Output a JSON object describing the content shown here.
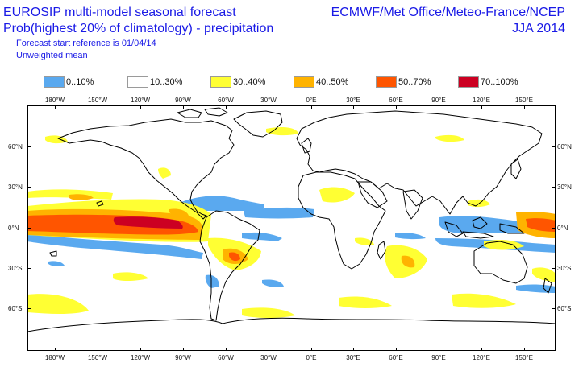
{
  "header": {
    "title_line1": "EUROSIP multi-model seasonal forecast",
    "title_line2": "Prob(highest 20% of climatology) - precipitation",
    "subtitle_line1": "Forecast start reference is 01/04/14",
    "subtitle_line2": "Unweighted mean",
    "center_line1": "ECMWF/Met Office/Meteo-France/NCEP",
    "center_line2": "JJA 2014"
  },
  "legend": [
    {
      "label": "0..10%",
      "color": "#5aa9ef"
    },
    {
      "label": "10..30%",
      "color": "#ffffff"
    },
    {
      "label": "30..40%",
      "color": "#ffff33"
    },
    {
      "label": "40..50%",
      "color": "#ffb300"
    },
    {
      "label": "50..70%",
      "color": "#ff5500"
    },
    {
      "label": "70..100%",
      "color": "#cc0022"
    }
  ],
  "axes": {
    "lon_labels": [
      "180°W",
      "150°W",
      "120°W",
      "90°W",
      "60°W",
      "30°W",
      "0°E",
      "30°E",
      "60°E",
      "90°E",
      "120°E",
      "150°E"
    ],
    "lat_labels": [
      "60°N",
      "30°N",
      "0°N",
      "30°S",
      "60°S"
    ]
  }
}
